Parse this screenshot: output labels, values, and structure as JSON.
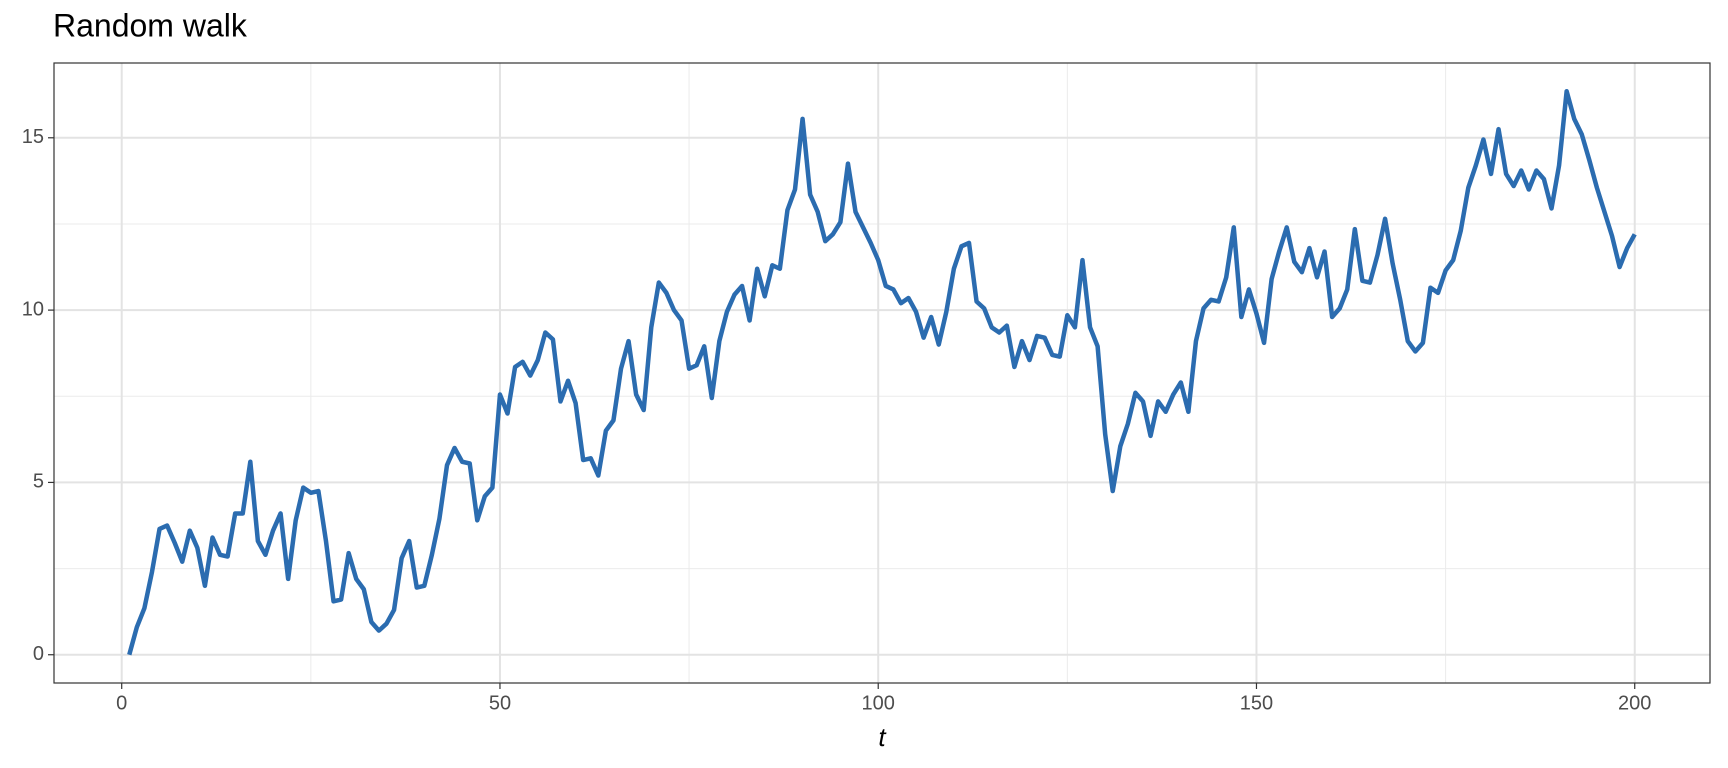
{
  "chart_data": {
    "type": "line",
    "title": "Random walk",
    "x_label": "t",
    "x": [
      1,
      2,
      3,
      4,
      5,
      6,
      7,
      8,
      9,
      10,
      11,
      12,
      13,
      14,
      15,
      16,
      17,
      18,
      19,
      20,
      21,
      22,
      23,
      24,
      25,
      26,
      27,
      28,
      29,
      30,
      31,
      32,
      33,
      34,
      35,
      36,
      37,
      38,
      39,
      40,
      41,
      42,
      43,
      44,
      45,
      46,
      47,
      48,
      49,
      50,
      51,
      52,
      53,
      54,
      55,
      56,
      57,
      58,
      59,
      60,
      61,
      62,
      63,
      64,
      65,
      66,
      67,
      68,
      69,
      70,
      71,
      72,
      73,
      74,
      75,
      76,
      77,
      78,
      79,
      80,
      81,
      82,
      83,
      84,
      85,
      86,
      87,
      88,
      89,
      90,
      91,
      92,
      93,
      94,
      95,
      96,
      97,
      98,
      99,
      100,
      101,
      102,
      103,
      104,
      105,
      106,
      107,
      108,
      109,
      110,
      111,
      112,
      113,
      114,
      115,
      116,
      117,
      118,
      119,
      120,
      121,
      122,
      123,
      124,
      125,
      126,
      127,
      128,
      129,
      130,
      131,
      132,
      133,
      134,
      135,
      136,
      137,
      138,
      139,
      140,
      141,
      142,
      143,
      144,
      145,
      146,
      147,
      148,
      149,
      150,
      151,
      152,
      153,
      154,
      155,
      156,
      157,
      158,
      159,
      160,
      161,
      162,
      163,
      164,
      165,
      166,
      167,
      168,
      169,
      170,
      171,
      172,
      173,
      174,
      175,
      176,
      177,
      178,
      179,
      180,
      181,
      182,
      183,
      184,
      185,
      186,
      187,
      188,
      189,
      190,
      191,
      192,
      193,
      194,
      195,
      196,
      197,
      198,
      199,
      200
    ],
    "values": [
      0.0,
      0.8,
      1.35,
      2.4,
      3.65,
      3.75,
      3.25,
      2.7,
      3.6,
      3.1,
      2.0,
      3.4,
      2.9,
      2.85,
      4.1,
      4.1,
      5.6,
      3.3,
      2.9,
      3.6,
      4.1,
      2.2,
      3.9,
      4.85,
      4.7,
      4.75,
      3.3,
      1.55,
      1.6,
      2.95,
      2.2,
      1.9,
      0.95,
      0.7,
      0.9,
      1.3,
      2.8,
      3.3,
      1.95,
      2.0,
      2.9,
      3.95,
      5.5,
      6.0,
      5.6,
      5.55,
      3.9,
      4.6,
      4.85,
      7.55,
      7.0,
      8.35,
      8.5,
      8.1,
      8.55,
      9.35,
      9.15,
      7.35,
      7.95,
      7.3,
      5.65,
      5.7,
      5.2,
      6.5,
      6.8,
      8.3,
      9.1,
      7.55,
      7.1,
      9.5,
      10.8,
      10.5,
      10.0,
      9.7,
      8.3,
      8.4,
      8.95,
      7.45,
      9.1,
      9.95,
      10.45,
      10.7,
      9.7,
      11.2,
      10.4,
      11.3,
      11.2,
      12.9,
      13.5,
      15.55,
      13.35,
      12.85,
      12.0,
      12.2,
      12.55,
      14.25,
      12.85,
      12.4,
      11.95,
      11.45,
      10.7,
      10.6,
      10.2,
      10.35,
      9.95,
      9.2,
      9.8,
      9.0,
      9.95,
      11.2,
      11.85,
      11.95,
      10.25,
      10.05,
      9.5,
      9.35,
      9.55,
      8.35,
      9.1,
      8.55,
      9.25,
      9.2,
      8.7,
      8.65,
      9.85,
      9.5,
      11.45,
      9.5,
      8.95,
      6.4,
      4.75,
      6.05,
      6.7,
      7.6,
      7.35,
      6.35,
      7.35,
      7.05,
      7.55,
      7.9,
      7.05,
      9.1,
      10.05,
      10.3,
      10.25,
      10.95,
      12.4,
      9.8,
      10.6,
      9.9,
      9.05,
      10.9,
      11.7,
      12.4,
      11.4,
      11.1,
      11.8,
      10.95,
      11.7,
      9.8,
      10.05,
      10.6,
      12.35,
      10.85,
      10.8,
      11.6,
      12.65,
      11.35,
      10.3,
      9.1,
      8.8,
      9.05,
      10.65,
      10.5,
      11.15,
      11.45,
      12.3,
      13.55,
      14.2,
      14.95,
      13.95,
      15.25,
      13.95,
      13.6,
      14.05,
      13.5,
      14.05,
      13.8,
      12.95,
      14.2,
      16.35,
      15.55,
      15.1,
      14.35,
      13.55,
      12.85,
      12.15,
      11.25,
      11.8,
      12.2
    ],
    "color": "#2b6cb0",
    "xlim": [
      -8.95,
      209.95
    ],
    "ylim": [
      -0.82,
      17.17
    ],
    "xticks": [
      0,
      50,
      100,
      150,
      200
    ],
    "yticks": [
      0,
      5,
      10,
      15
    ],
    "xminor": [
      25,
      75,
      125,
      175
    ],
    "yminor": [
      2.5,
      7.5,
      12.5
    ],
    "grid": true
  }
}
